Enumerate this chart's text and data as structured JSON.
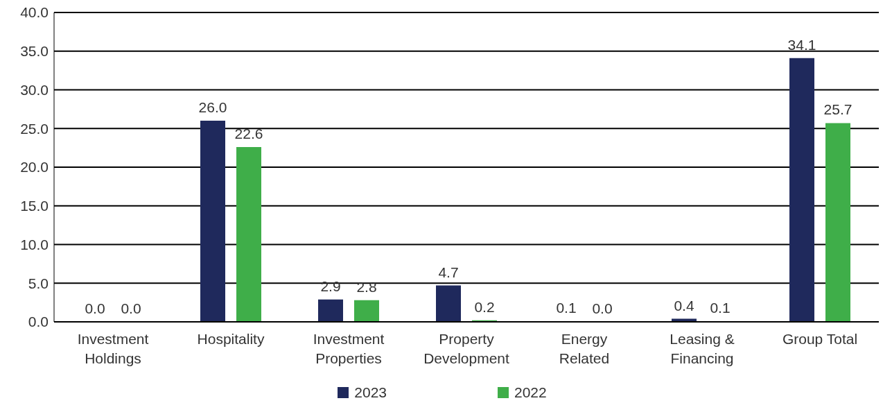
{
  "chart_data": {
    "type": "bar",
    "categories": [
      "Investment Holdings",
      "Hospitality",
      "Investment Properties",
      "Property Development",
      "Energy Related",
      "Leasing & Financing",
      "Group Total"
    ],
    "series": [
      {
        "name": "2023",
        "color": "#1f295c",
        "values": [
          0,
          26.0,
          2.9,
          4.7,
          0.1,
          0.4,
          34.1
        ],
        "value_labels": [
          "0.0",
          "26.0",
          "2.9",
          "4.7",
          "0.1",
          "0.4",
          "34.1"
        ]
      },
      {
        "name": "2022",
        "color": "#3fae49",
        "values": [
          0,
          22.6,
          2.8,
          0.2,
          0,
          0.1,
          25.7
        ],
        "value_labels": [
          "0.0",
          "22.6",
          "2.8",
          "0.2",
          "0.0",
          "0.1",
          "25.7"
        ]
      }
    ],
    "ylim": [
      0,
      40
    ],
    "yticks": [
      {
        "value": 0,
        "label": "0.0"
      },
      {
        "value": 5,
        "label": "5.0"
      },
      {
        "value": 10,
        "label": "10.0"
      },
      {
        "value": 15,
        "label": "15.0"
      },
      {
        "value": 20,
        "label": "20.0"
      },
      {
        "value": 25,
        "label": "25.0"
      },
      {
        "value": 30,
        "label": "30.0"
      },
      {
        "value": 35,
        "label": "35.0"
      },
      {
        "value": 40,
        "label": "40.0"
      }
    ],
    "grid": "y",
    "legend": "bottom"
  }
}
